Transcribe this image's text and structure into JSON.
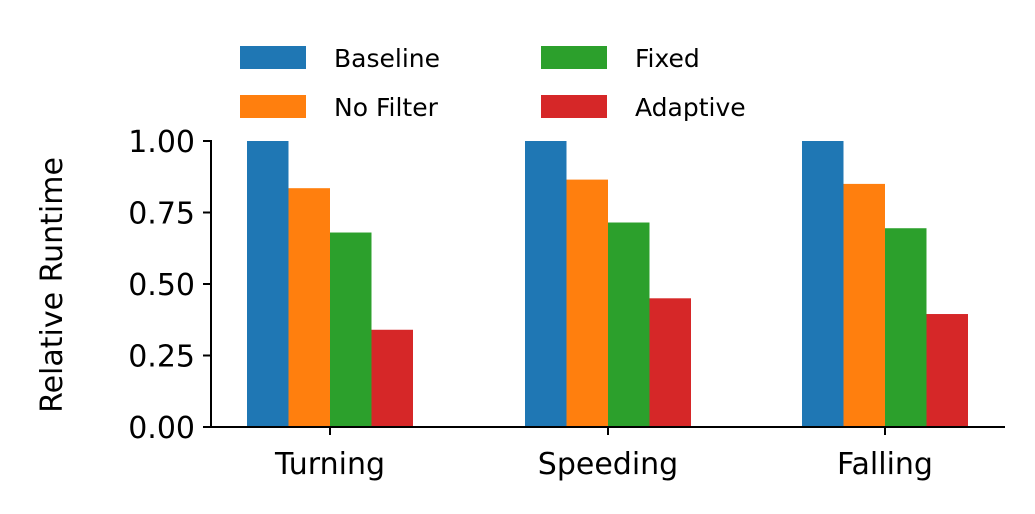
{
  "chart_data": {
    "type": "bar",
    "categories": [
      "Turning",
      "Speeding",
      "Falling"
    ],
    "series": [
      {
        "name": "Baseline",
        "values": [
          1.0,
          1.0,
          1.0
        ],
        "color": "#1f77b4"
      },
      {
        "name": "No Filter",
        "values": [
          0.835,
          0.865,
          0.85
        ],
        "color": "#ff7f0e"
      },
      {
        "name": "Fixed",
        "values": [
          0.68,
          0.715,
          0.695
        ],
        "color": "#2ca02c"
      },
      {
        "name": "Adaptive",
        "values": [
          0.34,
          0.45,
          0.395
        ],
        "color": "#d62728"
      }
    ],
    "title": "",
    "xlabel": "",
    "ylabel": "Relative Runtime",
    "ylim": [
      0,
      1.0
    ],
    "yticks": [
      "0.00",
      "0.25",
      "0.50",
      "0.75",
      "1.00"
    ],
    "legend_position": "top",
    "legend_columns": 2,
    "grid": false
  }
}
